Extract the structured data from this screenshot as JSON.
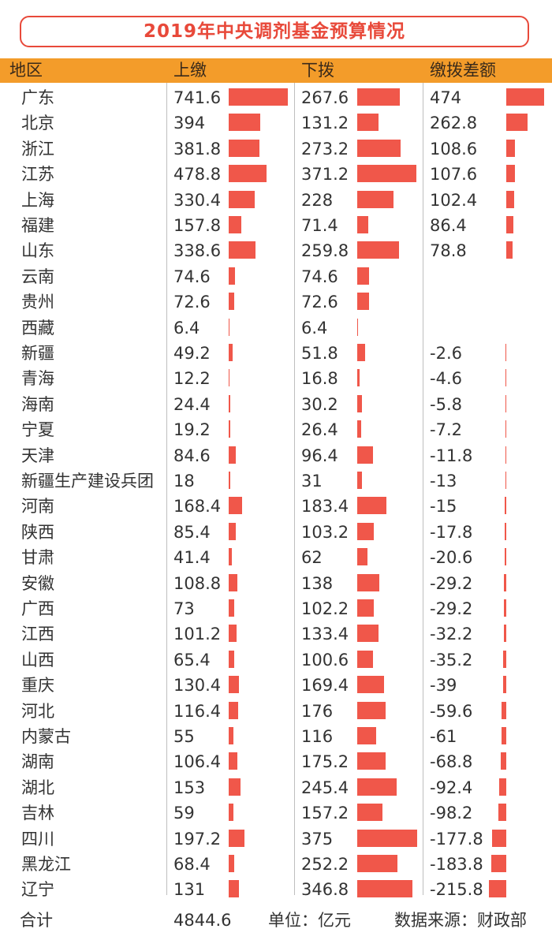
{
  "title": "2019年中央调剂基金预算情况",
  "headers": [
    "地区",
    "上缴",
    "下拨",
    "缴拨差额"
  ],
  "footer": {
    "total_label": "合计",
    "total_value": "4844.6",
    "unit": "单位：亿元",
    "source": "数据来源：财政部"
  },
  "colors": {
    "title": "#e8493a",
    "header_bg": "#f39c2a",
    "bar": "#f0574a"
  },
  "chart_data": {
    "type": "table",
    "title": "2019年中央调剂基金预算情况",
    "columns": [
      "地区",
      "上缴",
      "下拨",
      "缴拨差额"
    ],
    "rows": [
      {
        "region": "广东",
        "up": "741.6",
        "down": "267.6",
        "diff": "474"
      },
      {
        "region": "北京",
        "up": "394",
        "down": "131.2",
        "diff": "262.8"
      },
      {
        "region": "浙江",
        "up": "381.8",
        "down": "273.2",
        "diff": "108.6"
      },
      {
        "region": "江苏",
        "up": "478.8",
        "down": "371.2",
        "diff": "107.6"
      },
      {
        "region": "上海",
        "up": "330.4",
        "down": "228",
        "diff": "102.4"
      },
      {
        "region": "福建",
        "up": "157.8",
        "down": "71.4",
        "diff": "86.4"
      },
      {
        "region": "山东",
        "up": "338.6",
        "down": "259.8",
        "diff": "78.8"
      },
      {
        "region": "云南",
        "up": "74.6",
        "down": "74.6",
        "diff": ""
      },
      {
        "region": "贵州",
        "up": "72.6",
        "down": "72.6",
        "diff": ""
      },
      {
        "region": "西藏",
        "up": "6.4",
        "down": "6.4",
        "diff": ""
      },
      {
        "region": "新疆",
        "up": "49.2",
        "down": "51.8",
        "diff": "-2.6"
      },
      {
        "region": "青海",
        "up": "12.2",
        "down": "16.8",
        "diff": "-4.6"
      },
      {
        "region": "海南",
        "up": "24.4",
        "down": "30.2",
        "diff": "-5.8"
      },
      {
        "region": "宁夏",
        "up": "19.2",
        "down": "26.4",
        "diff": "-7.2"
      },
      {
        "region": "天津",
        "up": "84.6",
        "down": "96.4",
        "diff": "-11.8"
      },
      {
        "region": "新疆生产建设兵团",
        "up": "18",
        "down": "31",
        "diff": "-13"
      },
      {
        "region": "河南",
        "up": "168.4",
        "down": "183.4",
        "diff": "-15"
      },
      {
        "region": "陕西",
        "up": "85.4",
        "down": "103.2",
        "diff": "-17.8"
      },
      {
        "region": "甘肃",
        "up": "41.4",
        "down": "62",
        "diff": "-20.6"
      },
      {
        "region": "安徽",
        "up": "108.8",
        "down": "138",
        "diff": "-29.2"
      },
      {
        "region": "广西",
        "up": "73",
        "down": "102.2",
        "diff": "-29.2"
      },
      {
        "region": "江西",
        "up": "101.2",
        "down": "133.4",
        "diff": "-32.2"
      },
      {
        "region": "山西",
        "up": "65.4",
        "down": "100.6",
        "diff": "-35.2"
      },
      {
        "region": "重庆",
        "up": "130.4",
        "down": "169.4",
        "diff": "-39"
      },
      {
        "region": "河北",
        "up": "116.4",
        "down": "176",
        "diff": "-59.6"
      },
      {
        "region": "内蒙古",
        "up": "55",
        "down": "116",
        "diff": "-61"
      },
      {
        "region": "湖南",
        "up": "106.4",
        "down": "175.2",
        "diff": "-68.8"
      },
      {
        "region": "湖北",
        "up": "153",
        "down": "245.4",
        "diff": "-92.4"
      },
      {
        "region": "吉林",
        "up": "59",
        "down": "157.2",
        "diff": "-98.2"
      },
      {
        "region": "四川",
        "up": "197.2",
        "down": "375",
        "diff": "-177.8"
      },
      {
        "region": "黑龙江",
        "up": "68.4",
        "down": "252.2",
        "diff": "-183.8"
      },
      {
        "region": "辽宁",
        "up": "131",
        "down": "346.8",
        "diff": "-215.8"
      }
    ]
  }
}
